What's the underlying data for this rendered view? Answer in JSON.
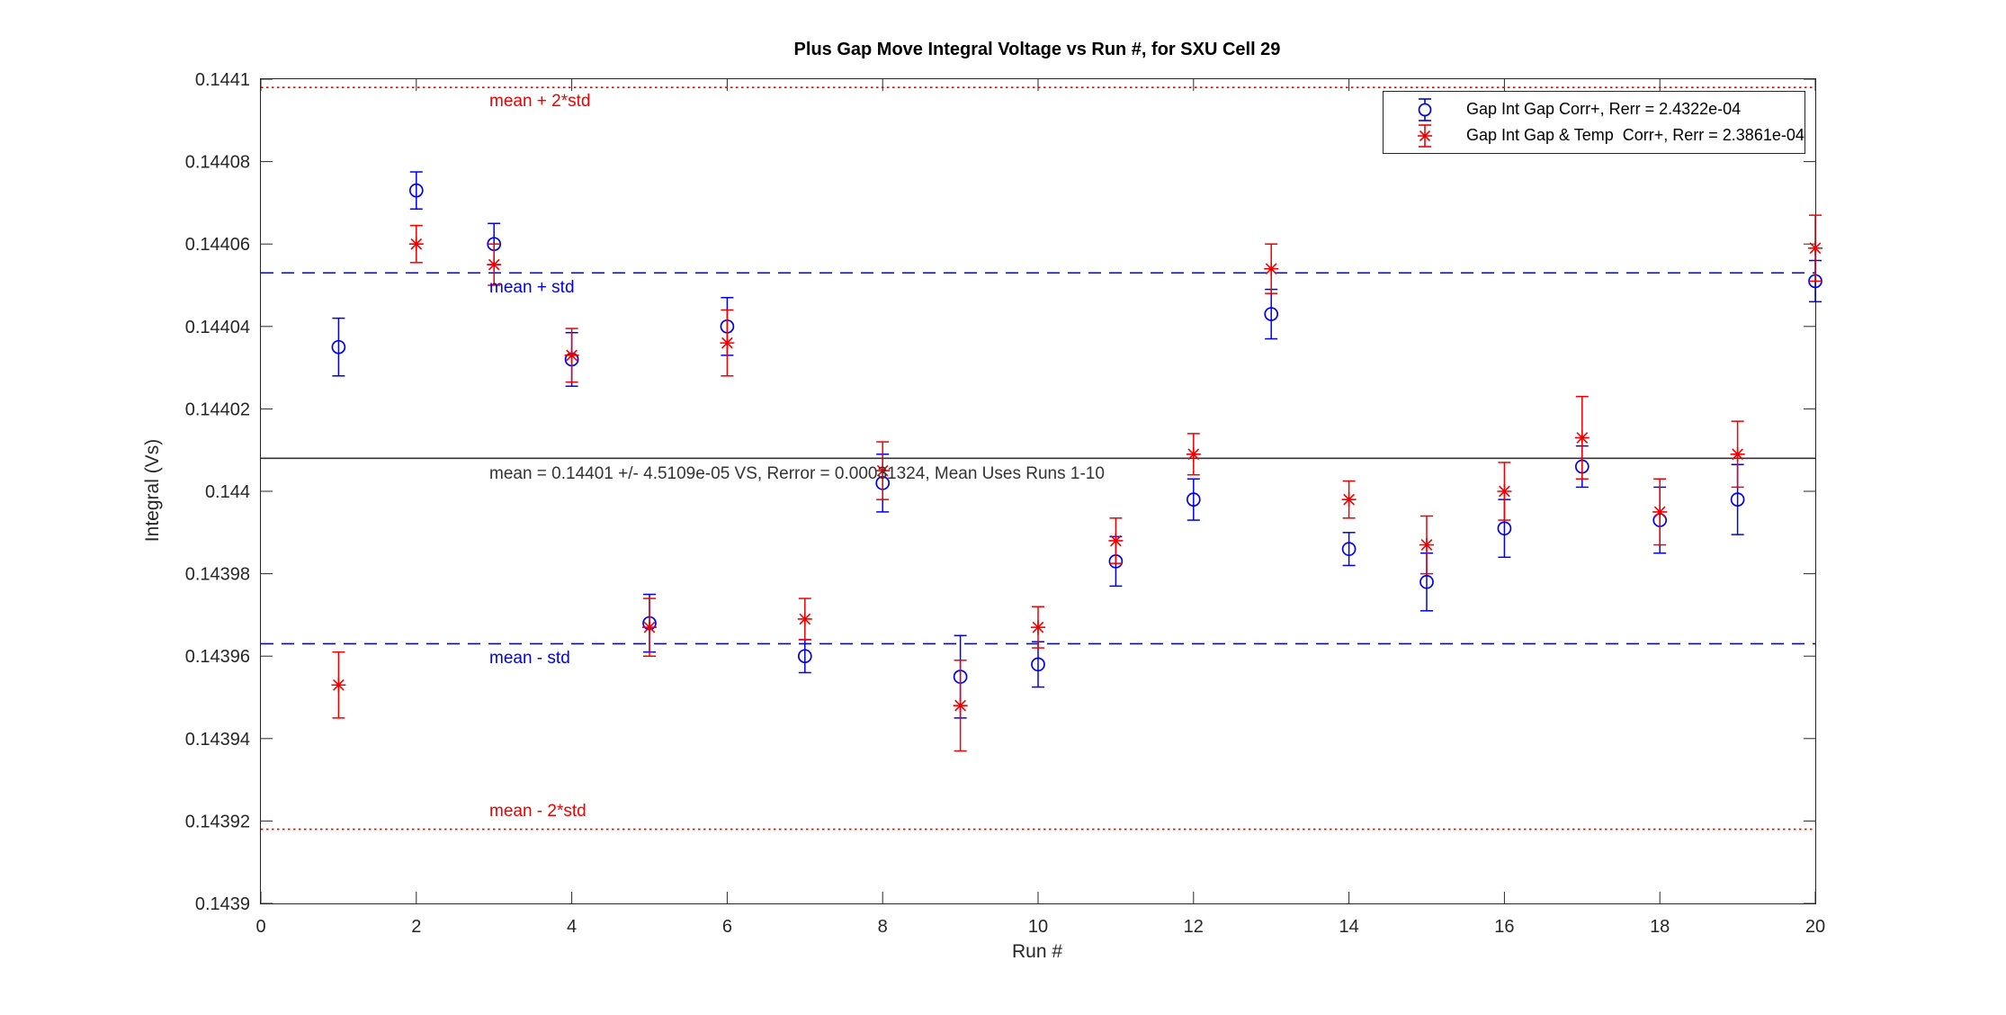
{
  "figure": {
    "title": "Plus Gap Move Integral Voltage vs Run #, for SXU Cell 29"
  },
  "chart_data": {
    "type": "scatter",
    "title": "Plus Gap Move Integral Voltage vs Run #, for SXU Cell 29",
    "xlabel": "Run #",
    "ylabel": "Integral (Vs)",
    "xlim": [
      0,
      20
    ],
    "ylim": [
      0.1439,
      0.1441
    ],
    "grid": false,
    "legend_position": "northeast",
    "xticks": [
      0,
      2,
      4,
      6,
      8,
      10,
      12,
      14,
      16,
      18,
      20
    ],
    "yticks": [
      0.1439,
      0.14392,
      0.14394,
      0.14396,
      0.14398,
      0.144,
      0.14402,
      0.14404,
      0.14406,
      0.14408,
      0.1441
    ],
    "ytick_labels": [
      "0.1439",
      "0.14392",
      "0.14394",
      "0.14396",
      "0.14398",
      "0.144",
      "0.14402",
      "0.14404",
      "0.14406",
      "0.14408",
      "0.1441"
    ],
    "series": [
      {
        "name": "Gap Int Gap Corr+, Rerr = 2.4322e-04",
        "marker": "circle",
        "color": "#0000EE",
        "x": [
          1,
          2,
          3,
          4,
          5,
          6,
          7,
          8,
          9,
          10,
          11,
          12,
          13,
          14,
          15,
          16,
          17,
          18,
          19,
          20
        ],
        "y": [
          0.144035,
          0.144073,
          0.14406,
          0.144032,
          0.143968,
          0.14404,
          0.14396,
          0.144002,
          0.143955,
          0.143958,
          0.143983,
          0.143998,
          0.144043,
          0.143986,
          0.143978,
          0.143991,
          0.144006,
          0.143993,
          0.143998,
          0.144051
        ],
        "yerr": [
          7e-06,
          4.5e-06,
          5e-06,
          6.5e-06,
          7e-06,
          7e-06,
          4e-06,
          7e-06,
          1e-05,
          5.5e-06,
          6e-06,
          5e-06,
          6e-06,
          4e-06,
          7e-06,
          7e-06,
          5e-06,
          8e-06,
          8.5e-06,
          5e-06
        ]
      },
      {
        "name": "Gap Int Gap & Temp  Corr+, Rerr = 2.3861e-04",
        "marker": "asterisk",
        "color": "#EE0000",
        "x": [
          1,
          2,
          3,
          4,
          5,
          6,
          7,
          8,
          9,
          10,
          11,
          12,
          13,
          14,
          15,
          16,
          17,
          18,
          19,
          20
        ],
        "y": [
          0.143953,
          0.14406,
          0.144055,
          0.144033,
          0.143967,
          0.144036,
          0.143969,
          0.144005,
          0.143948,
          0.143967,
          0.143988,
          0.144009,
          0.144054,
          0.143998,
          0.143987,
          0.144,
          0.144013,
          0.143995,
          0.144009,
          0.144059
        ],
        "yerr": [
          8e-06,
          4.5e-06,
          5e-06,
          6.5e-06,
          7e-06,
          8e-06,
          5e-06,
          7e-06,
          1.1e-05,
          5e-06,
          5.5e-06,
          5e-06,
          6e-06,
          4.5e-06,
          7e-06,
          7e-06,
          1e-05,
          8e-06,
          8e-06,
          8e-06
        ]
      }
    ],
    "reference_lines": [
      {
        "label": "mean + 2*std",
        "value": 0.144098,
        "color": "#EE0000",
        "style": "dotted"
      },
      {
        "label": "mean + std",
        "value": 0.144053,
        "color": "#0000EE",
        "style": "dashed"
      },
      {
        "label": "mean = 0.14401 +/- 4.5109e-05 VS, Rerror = 0.00031324, Mean Uses Runs 1-10",
        "value": 0.144008,
        "color": "#333333",
        "style": "solid"
      },
      {
        "label": "mean - std",
        "value": 0.143963,
        "color": "#0000EE",
        "style": "dashed"
      },
      {
        "label": "mean - 2*std",
        "value": 0.143918,
        "color": "#EE0000",
        "style": "dotted"
      }
    ],
    "stats": {
      "mean": "0.14401",
      "std": "4.5109e-05",
      "rerror": "0.00031324",
      "mean_uses_runs": "1-10"
    }
  }
}
